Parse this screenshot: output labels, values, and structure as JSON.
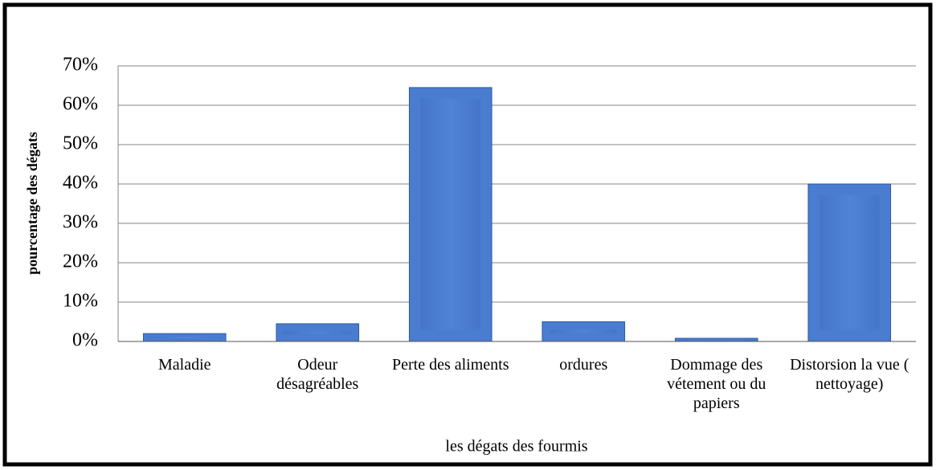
{
  "chart_data": {
    "type": "bar",
    "x_label": "les dégats des fourmis",
    "y_label": "pourcentage des dégats",
    "categories": [
      "Maladie",
      "Odeur désagréables",
      "Perte des aliments",
      "ordures",
      "Dommage des vétement ou du papiers",
      "Distorsion la vue ( nettoyage)"
    ],
    "values": [
      2,
      4.5,
      64.5,
      5,
      0.8,
      40
    ],
    "color": "#4a7ccf",
    "ylim": [
      0,
      70
    ],
    "yticks": [
      {
        "value": 0,
        "label": "0%"
      },
      {
        "value": 10,
        "label": "10%"
      },
      {
        "value": 20,
        "label": "20%"
      },
      {
        "value": 30,
        "label": "30%"
      },
      {
        "value": 40,
        "label": "40%"
      },
      {
        "value": 50,
        "label": "50%"
      },
      {
        "value": 60,
        "label": "60%"
      },
      {
        "value": 70,
        "label": "70%"
      }
    ],
    "grid": true
  }
}
